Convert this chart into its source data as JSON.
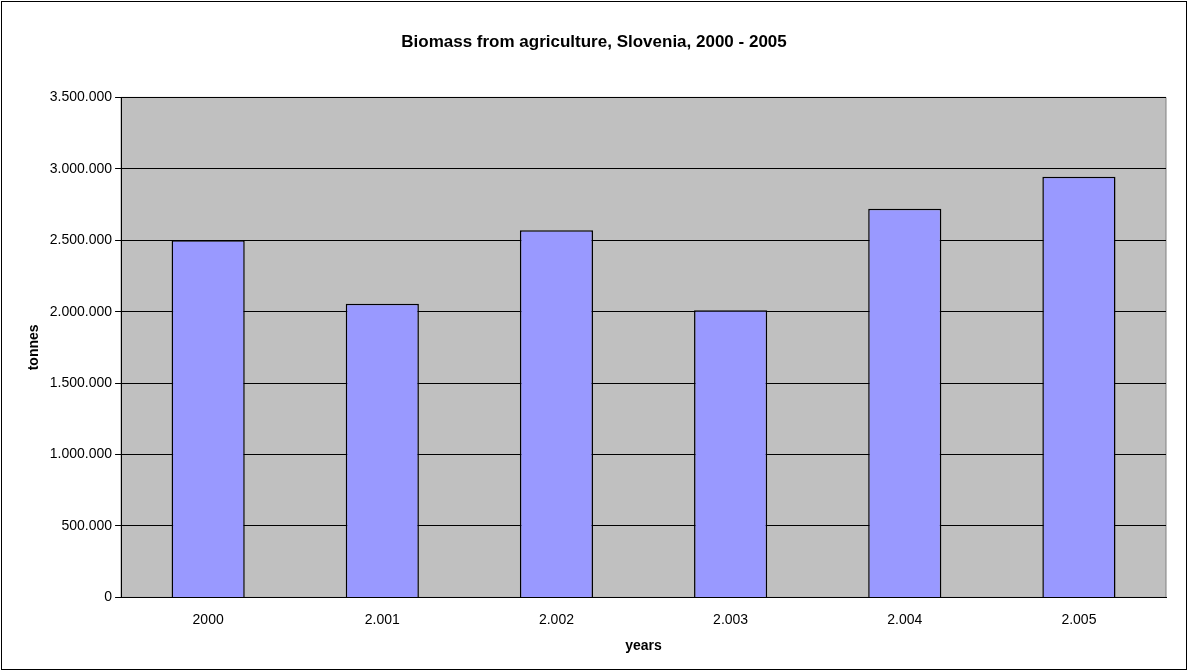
{
  "chart_data": {
    "type": "bar",
    "title": "Biomass from agriculture, Slovenia, 2000 - 2005",
    "xlabel": "years",
    "ylabel": "tonnes",
    "categories": [
      "2000",
      "2.001",
      "2.002",
      "2.003",
      "2.004",
      "2.005"
    ],
    "values": [
      2500000,
      2055000,
      2570000,
      2010000,
      2720000,
      2945000
    ],
    "color": "#9999ff",
    "ylim": [
      0,
      3500000
    ],
    "yticks": [
      0,
      {
        "value": 500000,
        "label": "500.000"
      },
      {
        "value": 1000000,
        "label": "1.000.000"
      },
      {
        "value": 1500000,
        "label": "1.500.000"
      },
      {
        "value": 2000000,
        "label": "2.000.000"
      },
      {
        "value": 2500000,
        "label": "2.500.000"
      },
      {
        "value": 3000000,
        "label": "3.000.000"
      },
      {
        "value": 3500000,
        "label": "3.500.000"
      }
    ],
    "grid": "y",
    "legend": false
  }
}
